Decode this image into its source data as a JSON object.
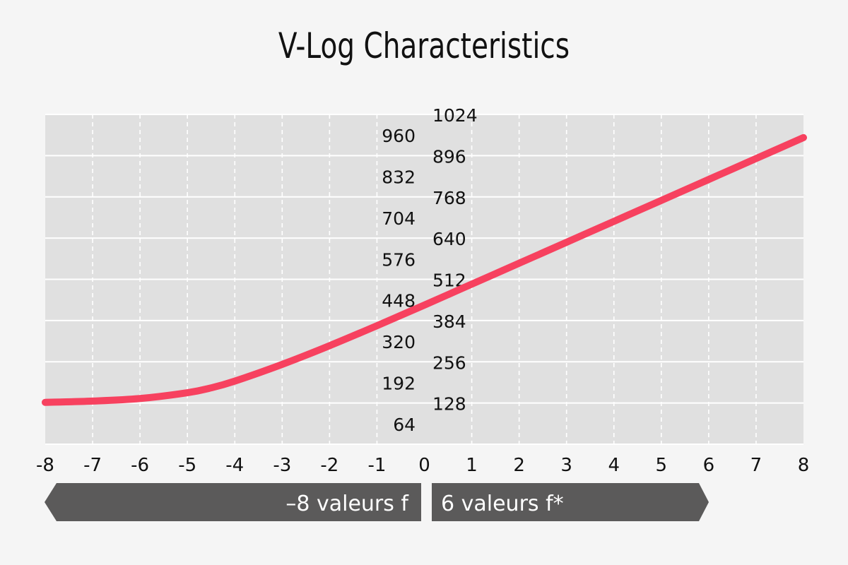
{
  "chart_data": {
    "type": "line",
    "title": "V-Log Characteristics",
    "x_ticks": [
      "-8",
      "-7",
      "-6",
      "-5",
      "-4",
      "-3",
      "-2",
      "-1",
      "0",
      "1",
      "2",
      "3",
      "4",
      "5",
      "6",
      "7",
      "8"
    ],
    "y_left_ticks": [
      "960",
      "832",
      "704",
      "576",
      "448",
      "320",
      "192",
      "64"
    ],
    "y_right_ticks": [
      "1024",
      "896",
      "768",
      "640",
      "512",
      "384",
      "256",
      "128"
    ],
    "xlim": [
      -8,
      8
    ],
    "ylim": [
      0,
      1024
    ],
    "grid": true,
    "series": [
      {
        "color": "#f7415f",
        "x": [
          -8,
          -7,
          -6,
          -5,
          -4.5,
          -4,
          -3,
          -2,
          -1,
          0,
          1,
          2,
          3,
          4,
          5,
          6,
          7,
          8
        ],
        "y": [
          130,
          134,
          142,
          160,
          175,
          196,
          248,
          306,
          368,
          432,
          497,
          562,
          627,
          692,
          757,
          822,
          887,
          952
        ]
      }
    ],
    "colors": {
      "plot_bg": "#e0e0e0",
      "page_bg": "#f5f5f5",
      "grid": "#ffffff",
      "line": "#f7415f",
      "banner": "#5b5a5a",
      "text": "#111111"
    }
  },
  "banner": {
    "left_label": "–8 valeurs f",
    "right_label": "6 valeurs f*"
  }
}
